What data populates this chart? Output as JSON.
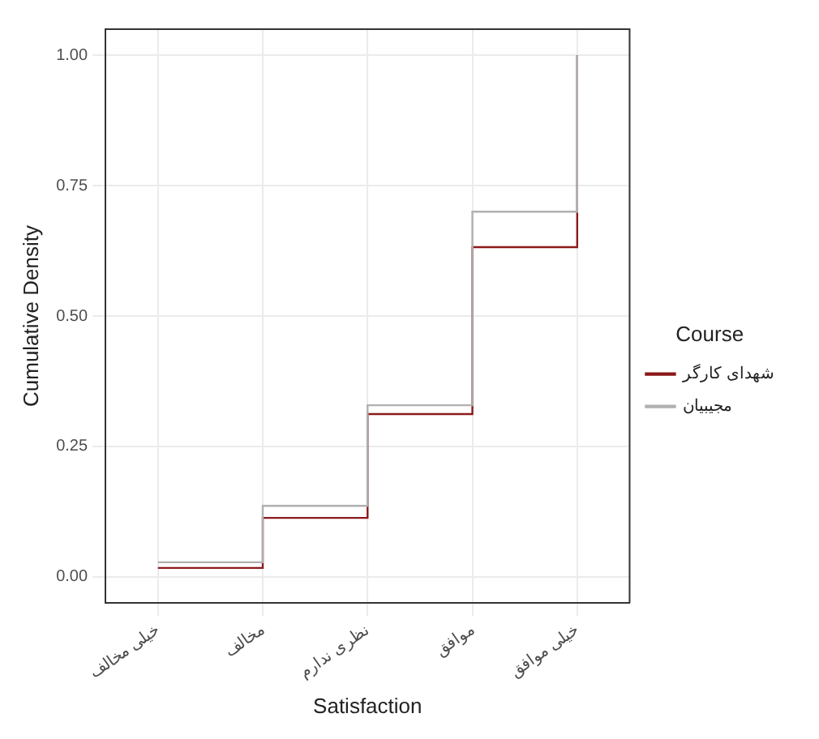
{
  "chart_data": {
    "type": "step",
    "xlabel": "Satisfaction",
    "ylabel": "Cumulative Density",
    "legend_title": "Course",
    "categories": [
      "خیلی مخالف",
      "مخالف",
      "نظری ندارم",
      "موافق",
      "خیلی موافق"
    ],
    "series": [
      {
        "name": "شهدای کارگر",
        "color": "#8b1a1a",
        "values": [
          0.017,
          0.113,
          0.312,
          0.632,
          1.0
        ]
      },
      {
        "name": "مجیبیان",
        "color": "#b0b0b0",
        "values": [
          0.028,
          0.136,
          0.329,
          0.7,
          1.0
        ]
      }
    ],
    "ylim": [
      -0.05,
      1.05
    ],
    "yticks": [
      {
        "value": 0,
        "label": "0.00"
      },
      {
        "value": 0.25,
        "label": "0.25"
      },
      {
        "value": 0.5,
        "label": "0.50"
      },
      {
        "value": 0.75,
        "label": "0.75"
      },
      {
        "value": 1,
        "label": "1.00"
      }
    ],
    "grid": true,
    "legend": "right"
  }
}
